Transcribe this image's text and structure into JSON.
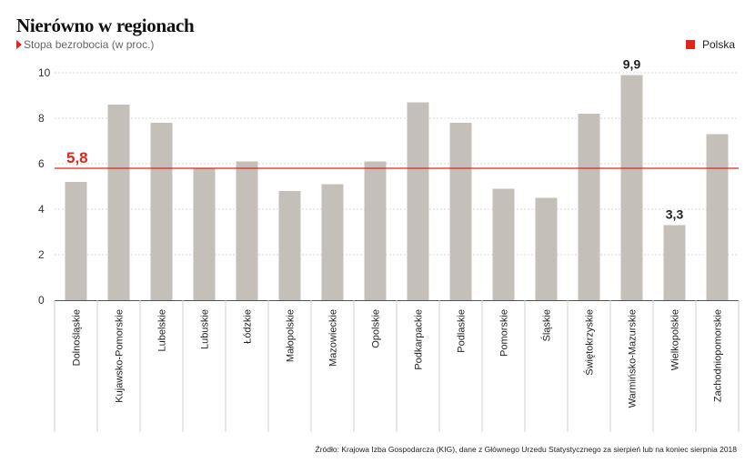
{
  "header": {
    "title": "Nierówno w regionach",
    "subtitle": "Stopa bezrobocia (w proc.)"
  },
  "legend": {
    "label": "Polska",
    "color": "#e1251b"
  },
  "source": "Źródło: Krajowa Izba Gospodarcza (KIG), dane z Głównego Urzedu Statystycznego za sierpień lub na koniec sierpnia 2018",
  "colors": {
    "bar": "#c4bfb9",
    "reference": "#e1251b",
    "grid": "#d9d9d9",
    "axis": "#555555"
  },
  "chart_data": {
    "type": "bar",
    "title": "Nierówno w regionach",
    "subtitle": "Stopa bezrobocia (w proc.)",
    "categories": [
      "Dolnośląskie",
      "Kujawsko-Pomorskie",
      "Lubelskie",
      "Lubuskie",
      "Łódzkie",
      "Małopolskie",
      "Mazowieckie",
      "Opolskie",
      "Podkarpackie",
      "Podlaskie",
      "Pomorskie",
      "Śląskie",
      "Świętokrzyskie",
      "Warmińsko-Mazurskie",
      "Wielkopolskie",
      "Zachodniopomorskie"
    ],
    "values": [
      5.2,
      8.6,
      7.8,
      5.8,
      6.1,
      4.8,
      5.1,
      6.1,
      8.7,
      7.8,
      4.9,
      4.5,
      8.2,
      9.9,
      3.3,
      7.3
    ],
    "data_labels": [
      {
        "index": 13,
        "text": "9,9"
      },
      {
        "index": 14,
        "text": "3,3"
      }
    ],
    "reference_line": {
      "name": "Polska",
      "value": 5.8,
      "label": "5,8"
    },
    "yticks": [
      "0",
      "2",
      "4",
      "6",
      "8",
      "10"
    ],
    "ylim": [
      0,
      10
    ],
    "grid": true,
    "legend_position": "top-right"
  }
}
